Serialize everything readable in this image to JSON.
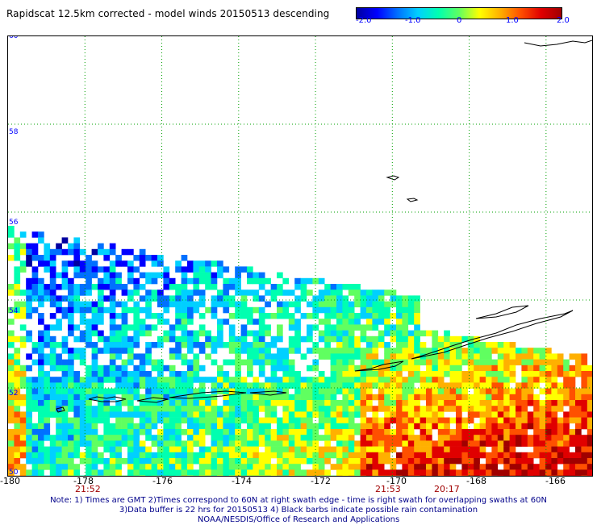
{
  "title": "Rapidscat 12.5km corrected - model winds 20150513 descending",
  "colorbar": {
    "ticks": [
      "-2.0",
      "-1.0",
      "0",
      "1.0",
      "2.0"
    ],
    "min": -2.0,
    "max": 2.0,
    "colors": [
      "#0000a0",
      "#0000ff",
      "#0070ff",
      "#00d0ff",
      "#00ffb0",
      "#60ff60",
      "#ffff00",
      "#ffb000",
      "#ff5000",
      "#e00000",
      "#a00000"
    ]
  },
  "map": {
    "lon_range": [
      -180,
      -165
    ],
    "lat_range": [
      50,
      60
    ],
    "lat_labels": [
      "60",
      "58",
      "56",
      "54",
      "52",
      "50"
    ],
    "lon_labels": [
      "-180",
      "-178",
      "-176",
      "-174",
      "-172",
      "-170",
      "-168",
      "-166"
    ],
    "times": [
      "21:52",
      "21:53",
      "20:17"
    ],
    "grid": "dotted",
    "grid_color": "#00a000",
    "coast_color": "#000000"
  },
  "notes": [
    "Note: 1) Times are GMT 2)Times correspond to 60N at right swath edge - time is right swath for overlapping swaths at 60N",
    "3)Data buffer is 22 hrs for 20150513 4) Black barbs indicate possible rain contamination",
    "NOAA/NESDIS/Office of Research and Applications"
  ]
}
